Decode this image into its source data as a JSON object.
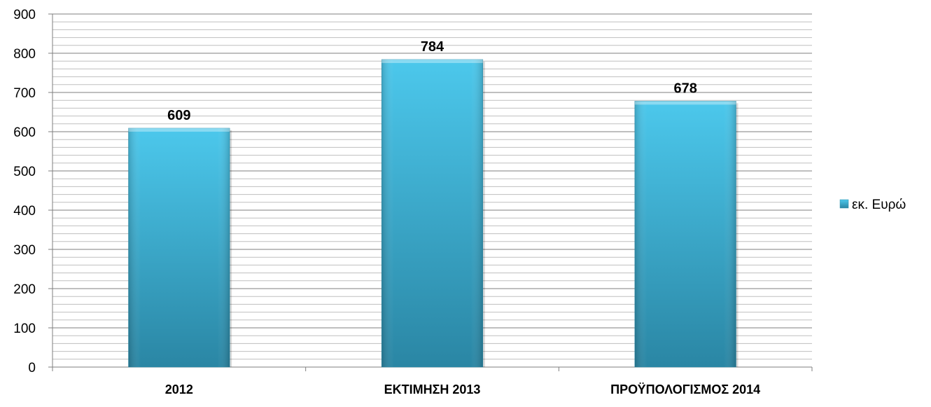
{
  "chart_data": {
    "type": "bar",
    "categories": [
      "2012",
      "ΕΚΤΙΜΗΣΗ 2013",
      "ΠΡΟΫΠΟΛΟΓΙΣΜΟΣ 2014"
    ],
    "series": [
      {
        "name": "εκ. Ευρώ",
        "values": [
          609,
          784,
          678
        ],
        "data_labels": [
          "609",
          "784",
          "678"
        ]
      }
    ],
    "ylim": [
      0,
      900
    ],
    "y_ticks": [
      0,
      100,
      200,
      300,
      400,
      500,
      600,
      700,
      800,
      900
    ],
    "y_tick_labels": [
      "0",
      "100",
      "200",
      "300",
      "400",
      "500",
      "600",
      "700",
      "800",
      "900"
    ],
    "minor_grid_step": 20,
    "grid": true,
    "legend_position": "right",
    "colors": {
      "bar_top": "#4cc8ec",
      "bar_bottom": "#2a86a4",
      "major_grid": "#7f7f7f",
      "minor_grid": "#bfbfbf",
      "axis": "#7f7f7f"
    }
  }
}
